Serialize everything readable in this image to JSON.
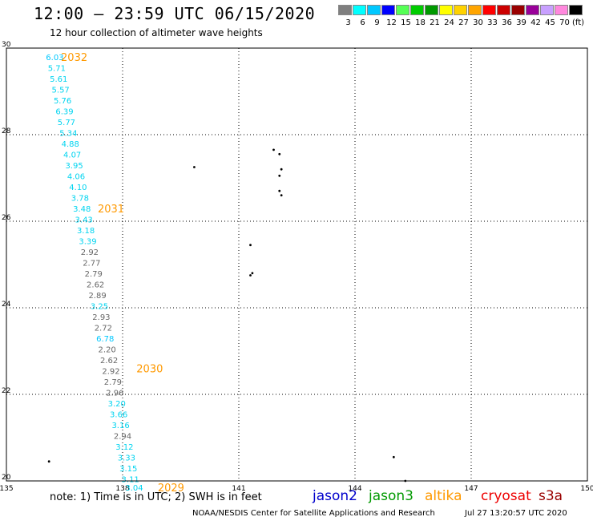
{
  "title": "12:00 – 23:59 UTC 06/15/2020",
  "subtitle": "12 hour collection of altimeter wave heights",
  "legend": {
    "unit": "(ft)",
    "bins": [
      {
        "label": "3",
        "color": "#7f7f7f"
      },
      {
        "label": "6",
        "color": "#00ffff"
      },
      {
        "label": "9",
        "color": "#00c8ff"
      },
      {
        "label": "12",
        "color": "#0000ff"
      },
      {
        "label": "15",
        "color": "#55ff55"
      },
      {
        "label": "18",
        "color": "#00cc00"
      },
      {
        "label": "21",
        "color": "#009900"
      },
      {
        "label": "24",
        "color": "#ffff00"
      },
      {
        "label": "27",
        "color": "#ffd200"
      },
      {
        "label": "30",
        "color": "#ffa500"
      },
      {
        "label": "33",
        "color": "#ff0000"
      },
      {
        "label": "36",
        "color": "#cc0000"
      },
      {
        "label": "39",
        "color": "#990000"
      },
      {
        "label": "42",
        "color": "#990099"
      },
      {
        "label": "45",
        "color": "#c8a0ff"
      },
      {
        "label": "70",
        "color": "#ff88dd"
      },
      {
        "label": "",
        "color": "#000000"
      }
    ]
  },
  "axes": {
    "lon_ticks": [
      "135",
      "138",
      "141",
      "144",
      "147",
      "150"
    ],
    "lat_ticks": [
      "30",
      "28",
      "26",
      "24",
      "22",
      "20"
    ],
    "lon_range": [
      135,
      150
    ],
    "lat_range": [
      20,
      30
    ]
  },
  "chart_data": {
    "type": "scatter",
    "title": "12:00 – 23:59 UTC 06/15/2020",
    "subtitle": "12 hour collection of altimeter wave heights",
    "xlim": [
      135,
      150
    ],
    "ylim": [
      20,
      30
    ],
    "grid": true,
    "points": [
      {
        "x": 136.25,
        "y": 29.8,
        "value": "6.03",
        "color": "#00c8ff"
      },
      {
        "x": 136.3,
        "y": 29.55,
        "value": "5.71",
        "color": "#00d4f0"
      },
      {
        "x": 136.35,
        "y": 29.3,
        "value": "5.61",
        "color": "#00d4f0"
      },
      {
        "x": 136.4,
        "y": 29.05,
        "value": "5.57",
        "color": "#00d4f0"
      },
      {
        "x": 136.45,
        "y": 28.8,
        "value": "5.76",
        "color": "#00d4f0"
      },
      {
        "x": 136.5,
        "y": 28.55,
        "value": "6.39",
        "color": "#00d4f0"
      },
      {
        "x": 136.55,
        "y": 28.3,
        "value": "5.77",
        "color": "#00d4f0"
      },
      {
        "x": 136.6,
        "y": 28.05,
        "value": "5.34",
        "color": "#00d4f0"
      },
      {
        "x": 136.65,
        "y": 27.8,
        "value": "4.88",
        "color": "#00d4f0"
      },
      {
        "x": 136.7,
        "y": 27.55,
        "value": "4.07",
        "color": "#00d4f0"
      },
      {
        "x": 136.75,
        "y": 27.3,
        "value": "3.95",
        "color": "#00d4f0"
      },
      {
        "x": 136.8,
        "y": 27.05,
        "value": "4.06",
        "color": "#00d4f0"
      },
      {
        "x": 136.85,
        "y": 26.8,
        "value": "4.10",
        "color": "#00d4f0"
      },
      {
        "x": 136.9,
        "y": 26.55,
        "value": "3.78",
        "color": "#00d4f0"
      },
      {
        "x": 136.95,
        "y": 26.3,
        "value": "3.48",
        "color": "#00d4f0"
      },
      {
        "x": 137.0,
        "y": 26.05,
        "value": "3.43",
        "color": "#00d4f0"
      },
      {
        "x": 137.05,
        "y": 25.8,
        "value": "3.18",
        "color": "#00d4f0"
      },
      {
        "x": 137.1,
        "y": 25.55,
        "value": "3.39",
        "color": "#00d4f0"
      },
      {
        "x": 137.15,
        "y": 25.3,
        "value": "2.92",
        "color": "#666666"
      },
      {
        "x": 137.2,
        "y": 25.05,
        "value": "2.77",
        "color": "#666666"
      },
      {
        "x": 137.25,
        "y": 24.8,
        "value": "2.79",
        "color": "#666666"
      },
      {
        "x": 137.3,
        "y": 24.55,
        "value": "2.62",
        "color": "#666666"
      },
      {
        "x": 137.35,
        "y": 24.3,
        "value": "2.89",
        "color": "#666666"
      },
      {
        "x": 137.4,
        "y": 24.05,
        "value": "3.25",
        "color": "#00d4f0"
      },
      {
        "x": 137.45,
        "y": 23.8,
        "value": "2.93",
        "color": "#666666"
      },
      {
        "x": 137.5,
        "y": 23.55,
        "value": "2.72",
        "color": "#666666"
      },
      {
        "x": 137.55,
        "y": 23.3,
        "value": "6.78",
        "color": "#00c8ff"
      },
      {
        "x": 137.6,
        "y": 23.05,
        "value": "2.20",
        "color": "#666666"
      },
      {
        "x": 137.65,
        "y": 22.8,
        "value": "2.62",
        "color": "#666666"
      },
      {
        "x": 137.7,
        "y": 22.55,
        "value": "2.92",
        "color": "#666666"
      },
      {
        "x": 137.75,
        "y": 22.3,
        "value": "2.79",
        "color": "#666666"
      },
      {
        "x": 137.8,
        "y": 22.05,
        "value": "2.96",
        "color": "#666666"
      },
      {
        "x": 137.85,
        "y": 21.8,
        "value": "3.20",
        "color": "#00d4f0"
      },
      {
        "x": 137.9,
        "y": 21.55,
        "value": "3.66",
        "color": "#00d4f0"
      },
      {
        "x": 137.95,
        "y": 21.3,
        "value": "3.16",
        "color": "#00d4f0"
      },
      {
        "x": 138.0,
        "y": 21.05,
        "value": "2.94",
        "color": "#666666"
      },
      {
        "x": 138.05,
        "y": 20.8,
        "value": "3.12",
        "color": "#00d4f0"
      },
      {
        "x": 138.1,
        "y": 20.55,
        "value": "3.33",
        "color": "#00d4f0"
      },
      {
        "x": 138.15,
        "y": 20.3,
        "value": "3.15",
        "color": "#00d4f0"
      },
      {
        "x": 138.2,
        "y": 20.05,
        "value": "3.11",
        "color": "#00d4f0"
      },
      {
        "x": 138.3,
        "y": 19.85,
        "value": "3.04",
        "color": "#00d4f0"
      }
    ],
    "time_labels": [
      {
        "x": 136.75,
        "y": 29.8,
        "text": "2032",
        "color": "#ff9900"
      },
      {
        "x": 137.7,
        "y": 26.3,
        "text": "2031",
        "color": "#ff9900"
      },
      {
        "x": 138.7,
        "y": 22.6,
        "text": "2030",
        "color": "#ff9900"
      },
      {
        "x": 139.25,
        "y": 19.85,
        "text": "2029",
        "color": "#ff9900"
      }
    ],
    "islands": [
      {
        "x": 141.9,
        "y": 27.65
      },
      {
        "x": 142.05,
        "y": 27.55
      },
      {
        "x": 142.1,
        "y": 27.2
      },
      {
        "x": 142.05,
        "y": 27.05
      },
      {
        "x": 142.05,
        "y": 26.7
      },
      {
        "x": 142.1,
        "y": 26.6
      },
      {
        "x": 139.85,
        "y": 27.25
      },
      {
        "x": 141.3,
        "y": 25.45
      },
      {
        "x": 141.35,
        "y": 24.8
      },
      {
        "x": 141.3,
        "y": 24.75
      },
      {
        "x": 145.0,
        "y": 20.55
      },
      {
        "x": 145.3,
        "y": 20.0
      },
      {
        "x": 136.1,
        "y": 20.45
      }
    ]
  },
  "footer": {
    "note": "note: 1) Time is in UTC; 2) SWH is in feet",
    "satellites": [
      {
        "name": "jason2",
        "color": "#0000cc"
      },
      {
        "name": "jason3",
        "color": "#009900"
      },
      {
        "name": "altika",
        "color": "#ff9900"
      },
      {
        "name": "cryosat",
        "color": "#ee0000"
      },
      {
        "name": "s3a",
        "color": "#990000"
      }
    ],
    "credit": "NOAA/NESDIS Center for Satellite Applications and Research",
    "timestamp": "Jul 27 13:20:57 UTC 2020"
  }
}
